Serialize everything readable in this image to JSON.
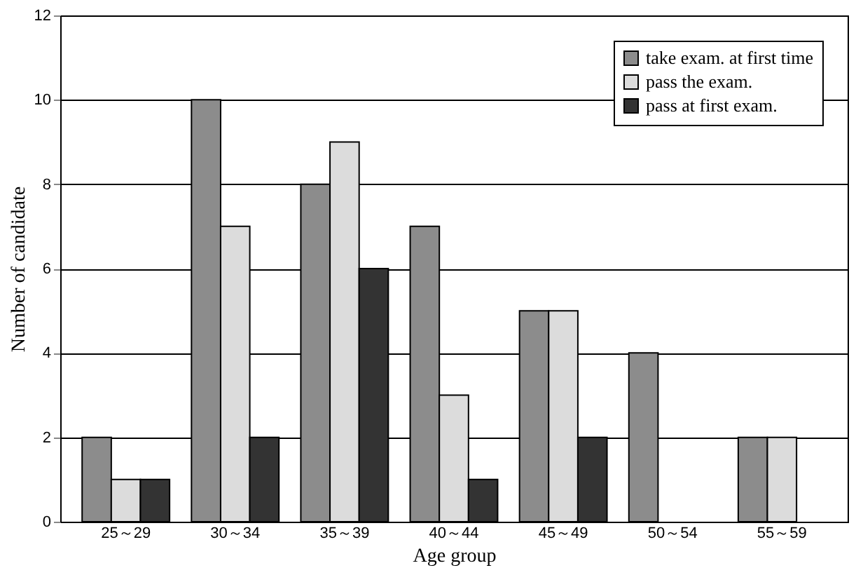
{
  "chart_data": {
    "type": "bar",
    "xlabel": "Age group",
    "ylabel": "Number of candidate",
    "categories": [
      "25～29",
      "30～34",
      "35～39",
      "40～44",
      "45～49",
      "50～54",
      "55～59"
    ],
    "series": [
      {
        "name": "take exam. at first time",
        "color": "#8c8c8c",
        "values": [
          2,
          10,
          8,
          7,
          5,
          4,
          2
        ]
      },
      {
        "name": "pass the exam.",
        "color": "#dcdcdc",
        "values": [
          1,
          7,
          9,
          3,
          5,
          null,
          2
        ]
      },
      {
        "name": "pass at first exam.",
        "color": "#333333",
        "values": [
          1,
          2,
          6,
          1,
          2,
          null,
          null
        ]
      }
    ],
    "ylim": [
      0,
      12
    ],
    "yticks": [
      0,
      2,
      4,
      6,
      8,
      10,
      12
    ],
    "grid": "y",
    "legend": "top right"
  }
}
